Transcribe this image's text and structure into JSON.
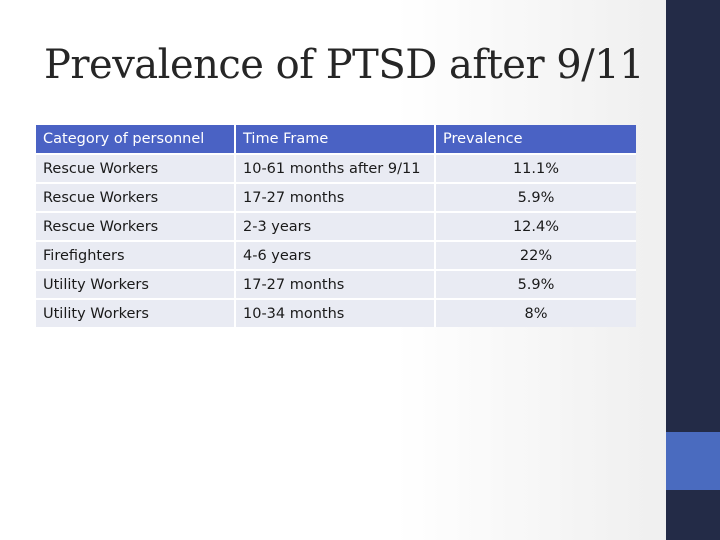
{
  "slide": {
    "title": "Prevalence of PTSD after 9/11"
  },
  "table": {
    "headers": [
      "Category of personnel",
      "Time Frame",
      "Prevalence"
    ],
    "rows": [
      [
        "Rescue Workers",
        "10-61 months after 9/11",
        "11.1%"
      ],
      [
        "Rescue Workers",
        "17-27 months",
        "5.9%"
      ],
      [
        "Rescue Workers",
        "2-3 years",
        "12.4%"
      ],
      [
        "Firefighters",
        "4-6 years",
        "22%"
      ],
      [
        "Utility Workers",
        "17-27 months",
        "5.9%"
      ],
      [
        "Utility Workers",
        "10-34 months",
        "8%"
      ]
    ]
  },
  "colors": {
    "header_bg": "#4a62c4",
    "row_bg": "#e9ebf3",
    "sidebar": "#232b47",
    "sidebar_accent": "#4a6bbf"
  }
}
